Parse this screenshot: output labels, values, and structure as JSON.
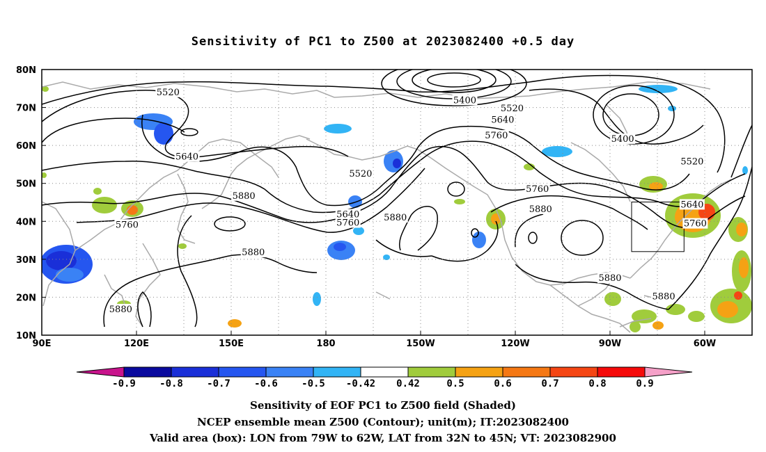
{
  "title": "Sensitivity of PC1 to Z500 at 2023082400 +0.5 day",
  "map": {
    "lon_labels": [
      "90E",
      "120E",
      "150E",
      "180",
      "150W",
      "120W",
      "90W",
      "60W"
    ],
    "lat_labels": [
      "80N",
      "70N",
      "60N",
      "50N",
      "40N",
      "30N",
      "20N",
      "10N"
    ],
    "contour_labels": [
      {
        "text": "5520",
        "lon": 130,
        "lat": 73.8
      },
      {
        "text": "5640",
        "lon": 136,
        "lat": 56.8
      },
      {
        "text": "5400",
        "lon": -136,
        "lat": 71.7
      },
      {
        "text": "5520",
        "lon": -121,
        "lat": 69.6
      },
      {
        "text": "5640",
        "lon": -124,
        "lat": 66.5
      },
      {
        "text": "5760",
        "lon": -126,
        "lat": 62.4
      },
      {
        "text": "5520",
        "lon": -169,
        "lat": 52.3
      },
      {
        "text": "5640",
        "lon": -173,
        "lat": 41.6
      },
      {
        "text": "5760",
        "lon": -173,
        "lat": 39.4
      },
      {
        "text": "5880",
        "lon": -158,
        "lat": 40.8
      },
      {
        "text": "5880",
        "lon": 154,
        "lat": 46.5
      },
      {
        "text": "5760",
        "lon": 117,
        "lat": 38.9
      },
      {
        "text": "5880",
        "lon": 157,
        "lat": 31.6
      },
      {
        "text": "5880",
        "lon": 115,
        "lat": 16.6
      },
      {
        "text": "5760",
        "lon": -113,
        "lat": 48.3
      },
      {
        "text": "5880",
        "lon": -112,
        "lat": 43.0
      },
      {
        "text": "5400",
        "lon": -86,
        "lat": 61.5
      },
      {
        "text": "5520",
        "lon": -64,
        "lat": 55.5
      },
      {
        "text": "5640",
        "lon": -64,
        "lat": 44.2
      },
      {
        "text": "5760",
        "lon": -63,
        "lat": 39.2
      },
      {
        "text": "5880",
        "lon": -90,
        "lat": 24.8
      },
      {
        "text": "5880",
        "lon": -73,
        "lat": 20.0
      }
    ]
  },
  "colorbar": {
    "labels": [
      "-0.9",
      "-0.8",
      "-0.7",
      "-0.6",
      "-0.5",
      "-0.42",
      "0.42",
      "0.5",
      "0.6",
      "0.7",
      "0.8",
      "0.9"
    ],
    "colors": [
      "#0a0a9e",
      "#1a2fd8",
      "#2556f0",
      "#3a82f5",
      "#32b4f5",
      "#ffffff",
      "#a0cc3c",
      "#f5a214",
      "#f57814",
      "#f54614",
      "#f50a0a"
    ],
    "low_color": "#c8148c",
    "high_color": "#f5a0c8"
  },
  "captions": [
    "Sensitivity of EOF PC1 to Z500 field (Shaded)",
    "NCEP ensemble mean Z500 (Contour); unit(m); IT:2023082400",
    "Valid area (box): LON from 79W to 62W, LAT from 32N to 45N; VT: 2023082900"
  ]
}
